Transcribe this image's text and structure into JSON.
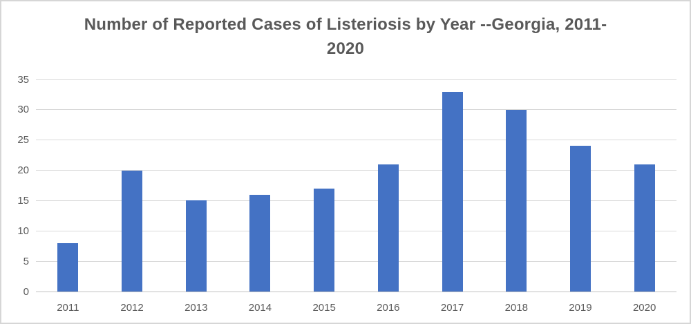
{
  "frame": {
    "background_color": "#FFFFFF",
    "border_color": "#D6D6D6"
  },
  "chart_data": {
    "type": "bar",
    "title": "Number of Reported Cases of Listeriosis by Year --Georgia, 2011-2020",
    "categories": [
      "2011",
      "2012",
      "2013",
      "2014",
      "2015",
      "2016",
      "2017",
      "2018",
      "2019",
      "2020"
    ],
    "values": [
      8,
      20,
      15,
      16,
      17,
      21,
      33,
      30,
      24,
      21
    ],
    "xlabel": "",
    "ylabel": "",
    "ylim": [
      0,
      35
    ],
    "yticks": [
      0,
      5,
      10,
      15,
      20,
      25,
      30,
      35
    ],
    "grid": true,
    "legend_position": "none",
    "bar_color": "#4472C4",
    "gridline_color": "#D9D9D9",
    "axis_line_color": "#BFBFBF",
    "text_color": "#595959",
    "title_color": "#595959"
  }
}
